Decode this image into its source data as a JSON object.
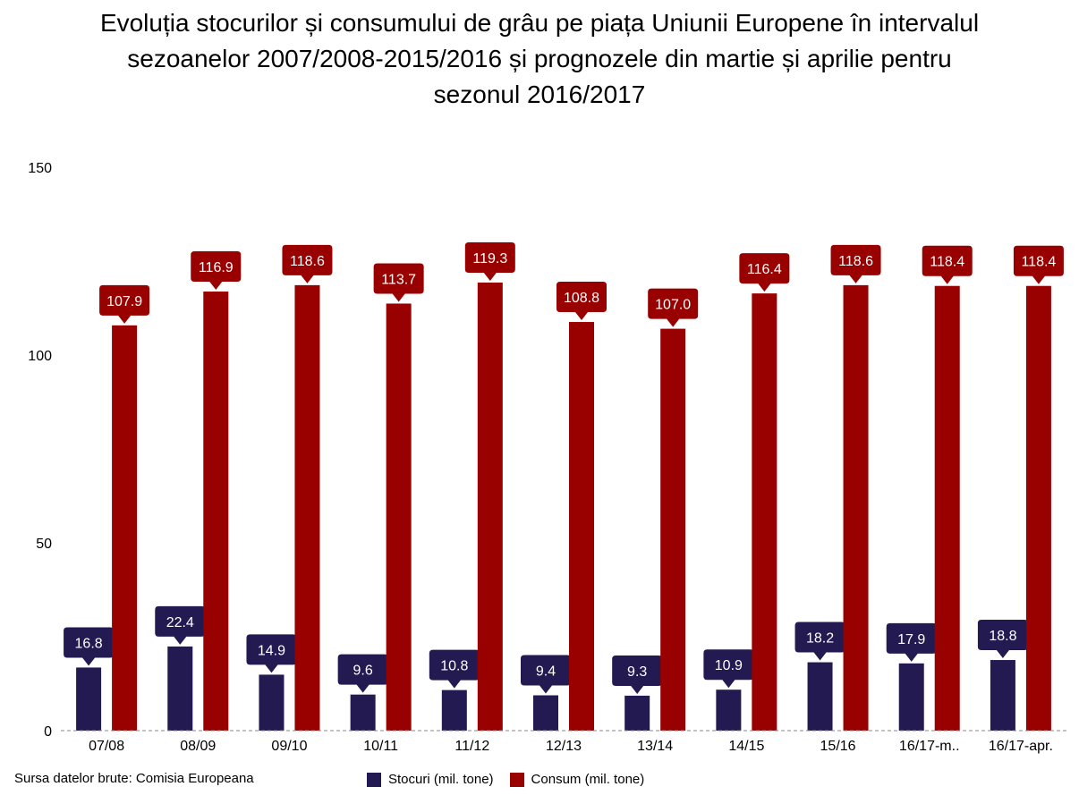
{
  "colors": {
    "stocuri": "#241A52",
    "consum": "#990000"
  },
  "chart_data": {
    "type": "bar",
    "title_lines": [
      "Evoluția stocurilor și consumului de grâu pe piața Uniunii Europene în intervalul",
      "sezoanelor 2007/2008-2015/2016 și prognozele din martie și aprilie pentru",
      "sezonul 2016/2017"
    ],
    "categories": [
      "07/08",
      "08/09",
      "09/10",
      "10/11",
      "11/12",
      "12/13",
      "13/14",
      "14/15",
      "15/16",
      "16/17-m..",
      "16/17-apr."
    ],
    "series": [
      {
        "name": "Stocuri (mil. tone)",
        "values": [
          16.8,
          22.4,
          14.9,
          9.6,
          10.8,
          9.4,
          9.3,
          10.9,
          18.2,
          17.9,
          18.8
        ]
      },
      {
        "name": "Consum (mil. tone)",
        "values": [
          107.9,
          116.9,
          118.6,
          113.7,
          119.3,
          108.8,
          107.0,
          116.4,
          118.6,
          118.4,
          118.4
        ]
      }
    ],
    "ylim": [
      0,
      150
    ],
    "yticks": [
      0,
      50,
      100,
      150
    ],
    "legend_position": "bottom",
    "grid": false
  },
  "source_text": "Sursa datelor brute: Comisia Europeana"
}
